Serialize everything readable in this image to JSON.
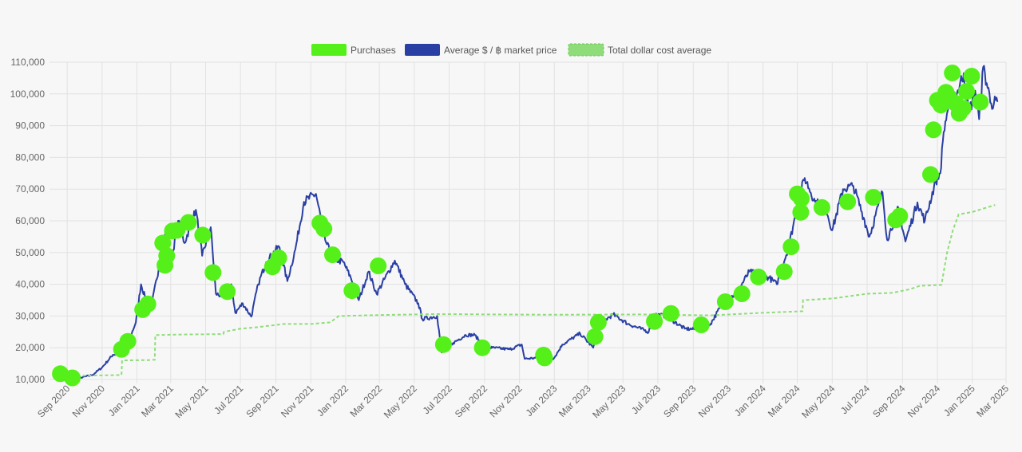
{
  "legend": {
    "purchases_label": "Purchases",
    "price_label": "Average $ / ฿ market price",
    "dca_label": "Total dollar cost average"
  },
  "colors": {
    "purchases": "#55f01a",
    "price": "#2a3fa3",
    "dca": "#8fdc7a",
    "grid": "#e2e2e2",
    "background": "#f7f7f7"
  },
  "chart_data": {
    "type": "line",
    "title": "",
    "xlabel": "",
    "ylabel": "",
    "ylim": [
      10000,
      110000
    ],
    "xlim": [
      "2020-08-01",
      "2025-03-01"
    ],
    "grid": true,
    "legend_position": "top",
    "y_ticks": [
      "10,000",
      "20,000",
      "30,000",
      "40,000",
      "50,000",
      "60,000",
      "70,000",
      "80,000",
      "90,000",
      "100,000",
      "110,000"
    ],
    "x_ticks": [
      {
        "date": "2020-09-01",
        "label": "Sep 2020"
      },
      {
        "date": "2020-11-01",
        "label": "Nov 2020"
      },
      {
        "date": "2021-01-01",
        "label": "Jan 2021"
      },
      {
        "date": "2021-03-01",
        "label": "Mar 2021"
      },
      {
        "date": "2021-05-01",
        "label": "May 2021"
      },
      {
        "date": "2021-07-01",
        "label": "Jul 2021"
      },
      {
        "date": "2021-09-01",
        "label": "Sep 2021"
      },
      {
        "date": "2021-11-01",
        "label": "Nov 2021"
      },
      {
        "date": "2022-01-01",
        "label": "Jan 2022"
      },
      {
        "date": "2022-03-01",
        "label": "Mar 2022"
      },
      {
        "date": "2022-05-01",
        "label": "May 2022"
      },
      {
        "date": "2022-07-01",
        "label": "Jul 2022"
      },
      {
        "date": "2022-09-01",
        "label": "Sep 2022"
      },
      {
        "date": "2022-11-01",
        "label": "Nov 2022"
      },
      {
        "date": "2023-01-01",
        "label": "Jan 2023"
      },
      {
        "date": "2023-03-01",
        "label": "Mar 2023"
      },
      {
        "date": "2023-05-01",
        "label": "May 2023"
      },
      {
        "date": "2023-07-01",
        "label": "Jul 2023"
      },
      {
        "date": "2023-09-01",
        "label": "Sep 2023"
      },
      {
        "date": "2023-11-01",
        "label": "Nov 2023"
      },
      {
        "date": "2024-01-01",
        "label": "Jan 2024"
      },
      {
        "date": "2024-03-01",
        "label": "Mar 2024"
      },
      {
        "date": "2024-05-01",
        "label": "May 2024"
      },
      {
        "date": "2024-07-01",
        "label": "Jul 2024"
      },
      {
        "date": "2024-09-01",
        "label": "Sep 2024"
      },
      {
        "date": "2024-11-01",
        "label": "Nov 2024"
      },
      {
        "date": "2025-01-01",
        "label": "Jan 2025"
      },
      {
        "date": "2025-03-01",
        "label": "Mar 2025"
      }
    ],
    "series": [
      {
        "name": "Average $ / ฿ market price",
        "points": [
          [
            "2020-08-20",
            11600
          ],
          [
            "2020-09-05",
            10300
          ],
          [
            "2020-09-25",
            10600
          ],
          [
            "2020-10-15",
            11400
          ],
          [
            "2020-11-01",
            13800
          ],
          [
            "2020-11-20",
            17800
          ],
          [
            "2020-12-10",
            18400
          ],
          [
            "2020-12-30",
            28000
          ],
          [
            "2021-01-08",
            40000
          ],
          [
            "2021-01-15",
            36000
          ],
          [
            "2021-01-25",
            32000
          ],
          [
            "2021-02-08",
            45000
          ],
          [
            "2021-02-21",
            57000
          ],
          [
            "2021-03-01",
            46000
          ],
          [
            "2021-03-14",
            60000
          ],
          [
            "2021-03-25",
            53000
          ],
          [
            "2021-04-14",
            63500
          ],
          [
            "2021-04-25",
            49000
          ],
          [
            "2021-05-10",
            58000
          ],
          [
            "2021-05-19",
            37000
          ],
          [
            "2021-06-05",
            36000
          ],
          [
            "2021-06-15",
            40000
          ],
          [
            "2021-06-22",
            31000
          ],
          [
            "2021-07-05",
            34000
          ],
          [
            "2021-07-20",
            29800
          ],
          [
            "2021-08-01",
            40000
          ],
          [
            "2021-08-15",
            47000
          ],
          [
            "2021-09-06",
            52000
          ],
          [
            "2021-09-21",
            41000
          ],
          [
            "2021-10-05",
            51000
          ],
          [
            "2021-10-20",
            66000
          ],
          [
            "2021-11-10",
            68500
          ],
          [
            "2021-11-26",
            54000
          ],
          [
            "2021-12-10",
            48000
          ],
          [
            "2021-12-28",
            47000
          ],
          [
            "2022-01-10",
            42000
          ],
          [
            "2022-01-24",
            35000
          ],
          [
            "2022-02-10",
            44000
          ],
          [
            "2022-02-24",
            37000
          ],
          [
            "2022-03-28",
            47500
          ],
          [
            "2022-04-15",
            40000
          ],
          [
            "2022-05-08",
            34000
          ],
          [
            "2022-05-15",
            29000
          ],
          [
            "2022-06-10",
            30000
          ],
          [
            "2022-06-18",
            18500
          ],
          [
            "2022-07-08",
            21500
          ],
          [
            "2022-07-30",
            24000
          ],
          [
            "2022-08-15",
            24000
          ],
          [
            "2022-09-01",
            20000
          ],
          [
            "2022-09-15",
            20000
          ],
          [
            "2022-10-15",
            19500
          ],
          [
            "2022-11-05",
            21000
          ],
          [
            "2022-11-10",
            16500
          ],
          [
            "2022-12-15",
            17000
          ],
          [
            "2022-12-31",
            16600
          ],
          [
            "2023-01-15",
            21000
          ],
          [
            "2023-02-15",
            24500
          ],
          [
            "2023-03-10",
            20000
          ],
          [
            "2023-03-25",
            28000
          ],
          [
            "2023-04-14",
            30500
          ],
          [
            "2023-05-10",
            27500
          ],
          [
            "2023-06-15",
            25000
          ],
          [
            "2023-06-25",
            30500
          ],
          [
            "2023-07-15",
            30000
          ],
          [
            "2023-08-17",
            26000
          ],
          [
            "2023-09-10",
            25800
          ],
          [
            "2023-10-01",
            27500
          ],
          [
            "2023-10-24",
            34500
          ],
          [
            "2023-11-15",
            37000
          ],
          [
            "2023-12-08",
            44000
          ],
          [
            "2024-01-12",
            42000
          ],
          [
            "2024-01-25",
            40000
          ],
          [
            "2024-02-15",
            52000
          ],
          [
            "2024-03-05",
            68000
          ],
          [
            "2024-03-14",
            73500
          ],
          [
            "2024-04-01",
            66000
          ],
          [
            "2024-04-20",
            64000
          ],
          [
            "2024-05-01",
            57000
          ],
          [
            "2024-05-20",
            70000
          ],
          [
            "2024-06-07",
            71000
          ],
          [
            "2024-06-25",
            61000
          ],
          [
            "2024-07-05",
            55000
          ],
          [
            "2024-07-28",
            69000
          ],
          [
            "2024-08-05",
            54000
          ],
          [
            "2024-08-25",
            64000
          ],
          [
            "2024-09-06",
            53500
          ],
          [
            "2024-09-27",
            65800
          ],
          [
            "2024-10-10",
            60000
          ],
          [
            "2024-10-29",
            72500
          ],
          [
            "2024-11-06",
            75000
          ],
          [
            "2024-11-12",
            88000
          ],
          [
            "2024-11-22",
            98000
          ],
          [
            "2024-12-05",
            100000
          ],
          [
            "2024-12-17",
            106500
          ],
          [
            "2024-12-26",
            94000
          ],
          [
            "2025-01-06",
            101000
          ],
          [
            "2025-01-13",
            92000
          ],
          [
            "2025-01-20",
            108500
          ],
          [
            "2025-02-03",
            97000
          ],
          [
            "2025-02-14",
            97500
          ]
        ]
      },
      {
        "name": "Total dollar cost average",
        "points": [
          [
            "2020-08-20",
            11700
          ],
          [
            "2020-09-01",
            11400
          ],
          [
            "2020-10-01",
            11200
          ],
          [
            "2020-12-05",
            11400
          ],
          [
            "2020-12-06",
            16000
          ],
          [
            "2021-01-20",
            16100
          ],
          [
            "2021-02-01",
            16200
          ],
          [
            "2021-02-02",
            24000
          ],
          [
            "2021-04-01",
            24200
          ],
          [
            "2021-06-01",
            24300
          ],
          [
            "2021-06-02",
            25000
          ],
          [
            "2021-07-01",
            26000
          ],
          [
            "2021-08-01",
            26500
          ],
          [
            "2021-09-15",
            27500
          ],
          [
            "2021-11-01",
            27500
          ],
          [
            "2021-12-05",
            28000
          ],
          [
            "2021-12-20",
            30000
          ],
          [
            "2022-03-01",
            30300
          ],
          [
            "2022-06-01",
            30600
          ],
          [
            "2023-01-01",
            30400
          ],
          [
            "2023-06-01",
            30500
          ],
          [
            "2023-10-01",
            30200
          ],
          [
            "2024-01-01",
            31000
          ],
          [
            "2024-03-10",
            31500
          ],
          [
            "2024-03-11",
            35000
          ],
          [
            "2024-05-01",
            35500
          ],
          [
            "2024-07-01",
            37000
          ],
          [
            "2024-08-15",
            37300
          ],
          [
            "2024-09-15",
            38500
          ],
          [
            "2024-10-01",
            39500
          ],
          [
            "2024-11-08",
            39800
          ],
          [
            "2024-11-18",
            50000
          ],
          [
            "2024-11-28",
            57000
          ],
          [
            "2024-12-08",
            62000
          ],
          [
            "2025-01-01",
            62800
          ],
          [
            "2025-02-10",
            65000
          ]
        ]
      },
      {
        "name": "Purchases",
        "points": [
          [
            "2020-08-20",
            11800
          ],
          [
            "2020-09-10",
            10500
          ],
          [
            "2020-12-05",
            19500
          ],
          [
            "2020-12-16",
            22000
          ],
          [
            "2021-01-11",
            32000
          ],
          [
            "2021-01-20",
            33800
          ],
          [
            "2021-02-15",
            53000
          ],
          [
            "2021-02-19",
            46000
          ],
          [
            "2021-02-22",
            49000
          ],
          [
            "2021-03-04",
            56800
          ],
          [
            "2021-03-12",
            57000
          ],
          [
            "2021-04-01",
            59500
          ],
          [
            "2021-04-26",
            55500
          ],
          [
            "2021-05-14",
            43700
          ],
          [
            "2021-06-08",
            37700
          ],
          [
            "2021-08-26",
            45500
          ],
          [
            "2021-09-06",
            48300
          ],
          [
            "2021-11-17",
            59300
          ],
          [
            "2021-11-24",
            57500
          ],
          [
            "2021-12-09",
            49300
          ],
          [
            "2022-01-12",
            38000
          ],
          [
            "2022-02-27",
            45800
          ],
          [
            "2022-06-21",
            21000
          ],
          [
            "2022-08-28",
            20000
          ],
          [
            "2022-12-13",
            17700
          ],
          [
            "2022-12-15",
            16800
          ],
          [
            "2023-03-13",
            23500
          ],
          [
            "2023-03-19",
            28000
          ],
          [
            "2023-06-25",
            28300
          ],
          [
            "2023-07-24",
            30800
          ],
          [
            "2023-09-15",
            27200
          ],
          [
            "2023-10-27",
            34500
          ],
          [
            "2023-11-25",
            37000
          ],
          [
            "2023-12-24",
            42300
          ],
          [
            "2024-02-07",
            44000
          ],
          [
            "2024-02-19",
            51800
          ],
          [
            "2024-03-01",
            68500
          ],
          [
            "2024-03-07",
            62700
          ],
          [
            "2024-03-08",
            67000
          ],
          [
            "2024-04-13",
            64200
          ],
          [
            "2024-05-28",
            66000
          ],
          [
            "2024-07-12",
            67400
          ],
          [
            "2024-08-20",
            60300
          ],
          [
            "2024-08-27",
            61500
          ],
          [
            "2024-10-20",
            74600
          ],
          [
            "2024-10-25",
            88700
          ],
          [
            "2024-11-01",
            98000
          ],
          [
            "2024-11-07",
            96500
          ],
          [
            "2024-11-16",
            100500
          ],
          [
            "2024-11-21",
            99000
          ],
          [
            "2024-11-27",
            106600
          ],
          [
            "2024-12-03",
            97000
          ],
          [
            "2024-12-09",
            93900
          ],
          [
            "2024-12-16",
            95500
          ],
          [
            "2024-12-22",
            100800
          ],
          [
            "2024-12-31",
            105600
          ],
          [
            "2025-01-15",
            97400
          ]
        ]
      }
    ]
  }
}
